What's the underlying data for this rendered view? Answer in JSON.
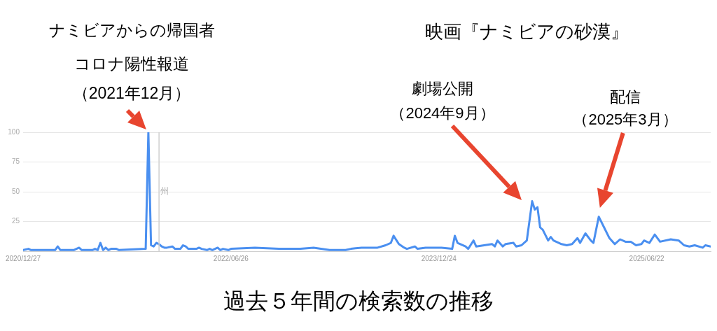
{
  "chart_data": {
    "type": "line",
    "title": "映画『ナミビアの砂漠』",
    "annotations": [
      {
        "text": "ナミビアからの帰国者コロナ陽性報道（2021年12月）",
        "x": "2021-11-21",
        "y": 100
      },
      "劇場公開（2024年9月）",
      "配信（2025年3月）",
      "過去５年間の検索数の推移"
    ],
    "series": [
      {
        "color": "#4a8ff0",
        "x": [
          "2020-12-27",
          "2021-01-10",
          "2021-01-17",
          "2021-03-21",
          "2021-03-28",
          "2021-04-04",
          "2021-05-09",
          "2021-05-23",
          "2021-05-30",
          "2021-06-27",
          "2021-07-04",
          "2021-07-11",
          "2021-07-18",
          "2021-07-25",
          "2021-08-01",
          "2021-08-08",
          "2021-08-15",
          "2021-08-29",
          "2021-09-05",
          "2021-11-14",
          "2021-11-21",
          "2021-11-28",
          "2021-12-05",
          "2021-12-12",
          "2021-12-19",
          "2021-12-26",
          "2022-01-02",
          "2022-01-09",
          "2022-01-23",
          "2022-01-30",
          "2022-02-13",
          "2022-02-20",
          "2022-02-27",
          "2022-03-06",
          "2022-03-27",
          "2022-04-03",
          "2022-04-10",
          "2022-04-24",
          "2022-05-01",
          "2022-05-08",
          "2022-05-22",
          "2022-05-29",
          "2022-06-05",
          "2022-06-19",
          "2022-06-26",
          "2022-08-28",
          "2022-10-30",
          "2022-12-25",
          "2023-01-29",
          "2023-03-12",
          "2023-04-23",
          "2023-05-07",
          "2023-06-04",
          "2023-06-25",
          "2023-07-16",
          "2023-08-06",
          "2023-08-20",
          "2023-08-27",
          "2023-09-10",
          "2023-09-24",
          "2023-10-01",
          "2023-10-22",
          "2023-10-29",
          "2023-11-19",
          "2023-12-31",
          "2024-01-28",
          "2024-02-04",
          "2024-02-11",
          "2024-03-03",
          "2024-03-10",
          "2024-03-24",
          "2024-03-31",
          "2024-04-21",
          "2024-05-12",
          "2024-05-19",
          "2024-05-26",
          "2024-06-09",
          "2024-06-16",
          "2024-07-07",
          "2024-07-14",
          "2024-07-28",
          "2024-08-11",
          "2024-08-25",
          "2024-09-01",
          "2024-09-08",
          "2024-09-15",
          "2024-09-22",
          "2024-10-06",
          "2024-10-13",
          "2024-10-20",
          "2024-11-10",
          "2024-11-24",
          "2024-12-08",
          "2024-12-22",
          "2024-12-29",
          "2025-01-12",
          "2025-01-26",
          "2025-02-02",
          "2025-02-16",
          "2025-03-02",
          "2025-03-16",
          "2025-03-30",
          "2025-04-13",
          "2025-04-27",
          "2025-05-11",
          "2025-05-25",
          "2025-06-08",
          "2025-06-15",
          "2025-06-29",
          "2025-07-13",
          "2025-07-27",
          "2025-08-24",
          "2025-09-14",
          "2025-09-28",
          "2025-10-12",
          "2025-10-26",
          "2025-11-16",
          "2025-11-23",
          "2025-12-07"
        ],
        "values": [
          1,
          2,
          1,
          1,
          4,
          1,
          1,
          3,
          1,
          1,
          2,
          1,
          7,
          1,
          3,
          1,
          2,
          2,
          1,
          2,
          100,
          5,
          4,
          7,
          6,
          4,
          3,
          3,
          4,
          2,
          2,
          5,
          4,
          2,
          2,
          3,
          2,
          1,
          2,
          1,
          3,
          1,
          2,
          1,
          2,
          3,
          2,
          2,
          3,
          1,
          1,
          2,
          3,
          3,
          3,
          5,
          7,
          13,
          6,
          3,
          2,
          4,
          2,
          3,
          3,
          2,
          13,
          7,
          4,
          2,
          9,
          4,
          5,
          6,
          4,
          9,
          4,
          6,
          7,
          4,
          5,
          9,
          42,
          35,
          37,
          20,
          18,
          9,
          12,
          9,
          6,
          5,
          6,
          11,
          7,
          15,
          9,
          7,
          29,
          20,
          11,
          6,
          10,
          8,
          8,
          5,
          6,
          9,
          7,
          14,
          8,
          10,
          9,
          5,
          4,
          5,
          3,
          5,
          4
        ]
      }
    ],
    "xlim": [
      "2020-12-27",
      "2025-12-07"
    ],
    "xticks": [
      {
        "value": "2020-12-27",
        "label": "2020/12/27"
      },
      {
        "value": "2022-06-26",
        "label": "2022/06/26"
      },
      {
        "value": "2023-12-24",
        "label": "2023/12/24"
      },
      {
        "value": "2025-06-22",
        "label": "2025/06/22"
      }
    ],
    "ylim": [
      0,
      100
    ],
    "yticks": [
      {
        "value": 0,
        "label": null
      },
      25,
      50,
      75,
      100
    ],
    "grid": "y",
    "ref_lines": [
      {
        "axis": "x",
        "value": "2021-12-19",
        "label": "州",
        "color": "#d0d0d0"
      }
    ],
    "legend": false,
    "marker": "none",
    "line_style": "solid"
  }
}
